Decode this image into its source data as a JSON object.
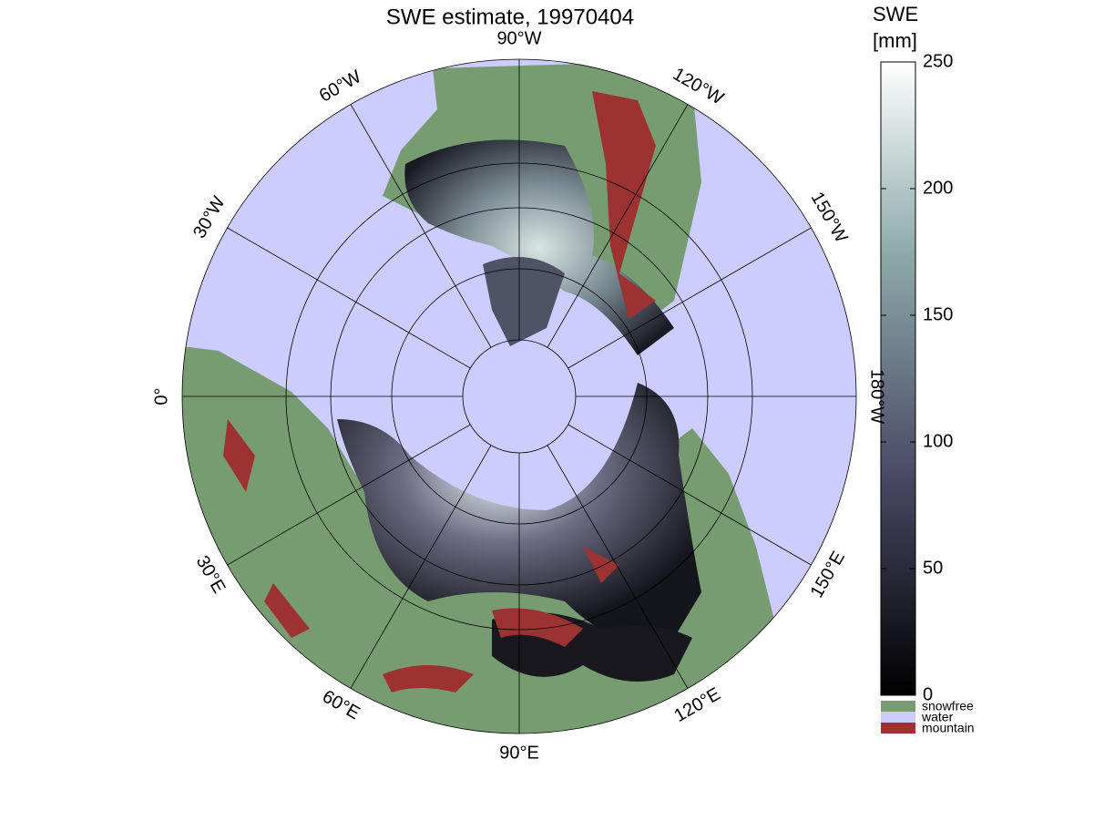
{
  "chart_data": {
    "type": "polar-map",
    "title": "SWE estimate, 19970404",
    "meridian_labels": [
      "0°",
      "30°W",
      "60°W",
      "90°W",
      "120°W",
      "150°W",
      "180°W",
      "150°E",
      "120°E",
      "90°E",
      "60°E",
      "30°E"
    ],
    "colorbar": {
      "title": [
        "SWE",
        "[mm]"
      ],
      "lim": [
        0,
        250
      ],
      "ticks": [
        0,
        50,
        100,
        150,
        200,
        250
      ]
    },
    "legend": [
      {
        "name": "snowfree",
        "color": "#789c72"
      },
      {
        "name": "water",
        "color": "#ccccff"
      },
      {
        "name": "mountain",
        "color": "#9c3232"
      }
    ]
  }
}
